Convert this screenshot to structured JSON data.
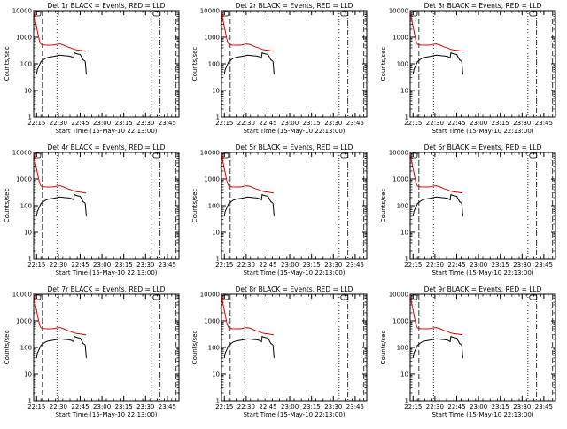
{
  "figure": {
    "title_template": "Det {det}r BLACK = Events, RED = LLD",
    "start_time_label": "Start Time (15-May-10 22:13:00)",
    "y_axis_label": "Counts/sec"
  },
  "chart_data": {
    "type": "line",
    "y_scale": "log",
    "ylim": [
      1,
      10000
    ],
    "y_tick_values": [
      1,
      10,
      100,
      1000,
      10000
    ],
    "y_tick_labels": [
      "1",
      "10",
      "100",
      "1000",
      "10000"
    ],
    "xlim_minutes_from_22_13": [
      0,
      100
    ],
    "x_tick_minutes_from_22_13": [
      2,
      17,
      32,
      47,
      62,
      77,
      92
    ],
    "x_tick_labels": [
      "22:15",
      "22:30",
      "22:45",
      "23:00",
      "23:15",
      "23:30",
      "23:45"
    ],
    "vertical_markers": [
      {
        "minute": 6,
        "style": "long-dash"
      },
      {
        "minute": 16,
        "style": "dotted"
      },
      {
        "minute": 81,
        "style": "dotted"
      },
      {
        "minute": 87,
        "style": "dash-dot"
      },
      {
        "minute": 98,
        "style": "long-dash"
      }
    ],
    "panels": [
      {
        "detector": "1",
        "series": [
          {
            "name": "Events",
            "color": "#000000",
            "x": [
              2,
              2.5,
              5,
              8,
              10,
              14,
              18,
              20,
              22,
              24,
              26,
              27.5,
              28,
              30,
              32,
              32.5,
              34,
              35,
              35.5,
              36,
              36.2
            ],
            "y": [
              40,
              60,
              120,
              160,
              175,
              190,
              210,
              205,
              200,
              195,
              185,
              165,
              260,
              235,
              225,
              200,
              140,
              130,
              120,
              60,
              40
            ]
          },
          {
            "name": "LLD",
            "color": "#dd0000",
            "x": [
              0,
              0.5,
              1,
              2,
              3,
              4,
              5,
              6,
              7,
              8,
              10,
              12,
              14,
              16,
              18,
              20,
              22,
              24,
              26,
              28,
              30,
              32,
              34,
              36
            ],
            "y": [
              9000,
              7000,
              4500,
              2500,
              1300,
              700,
              550,
              520,
              510,
              505,
              500,
              500,
              510,
              540,
              560,
              520,
              460,
              420,
              390,
              350,
              330,
              320,
              310,
              300
            ]
          }
        ]
      },
      {
        "detector": "2",
        "series": [
          {
            "name": "Events",
            "color": "#000000",
            "x": [
              2,
              2.5,
              5,
              8,
              10,
              14,
              18,
              20,
              22,
              24,
              26,
              27.5,
              28,
              30,
              32,
              32.5,
              34,
              35,
              35.5,
              36,
              36.2
            ],
            "y": [
              40,
              60,
              120,
              160,
              175,
              190,
              210,
              205,
              200,
              195,
              185,
              165,
              260,
              235,
              225,
              200,
              140,
              130,
              120,
              60,
              40
            ]
          },
          {
            "name": "LLD",
            "color": "#dd0000",
            "x": [
              0,
              0.5,
              1,
              2,
              3,
              4,
              5,
              6,
              7,
              8,
              10,
              12,
              14,
              16,
              18,
              20,
              22,
              24,
              26,
              28,
              30,
              32,
              34,
              36
            ],
            "y": [
              9000,
              7000,
              4500,
              2500,
              1300,
              700,
              550,
              520,
              510,
              505,
              500,
              500,
              510,
              540,
              560,
              520,
              460,
              420,
              390,
              350,
              330,
              320,
              310,
              300
            ]
          }
        ]
      },
      {
        "detector": "3",
        "series": [
          {
            "name": "Events",
            "color": "#000000",
            "x": [
              2,
              2.5,
              5,
              8,
              10,
              14,
              18,
              20,
              22,
              24,
              26,
              27.5,
              28,
              30,
              32,
              32.5,
              34,
              35,
              35.5,
              36,
              36.2
            ],
            "y": [
              40,
              60,
              120,
              160,
              175,
              190,
              210,
              205,
              200,
              195,
              185,
              165,
              260,
              235,
              225,
              200,
              140,
              130,
              120,
              60,
              40
            ]
          },
          {
            "name": "LLD",
            "color": "#dd0000",
            "x": [
              0,
              0.5,
              1,
              2,
              3,
              4,
              5,
              6,
              7,
              8,
              10,
              12,
              14,
              16,
              18,
              20,
              22,
              24,
              26,
              28,
              30,
              32,
              34,
              36
            ],
            "y": [
              9000,
              7000,
              4500,
              2500,
              1300,
              700,
              550,
              520,
              510,
              505,
              500,
              500,
              510,
              540,
              560,
              520,
              460,
              420,
              390,
              350,
              330,
              320,
              310,
              300
            ]
          }
        ]
      },
      {
        "detector": "4",
        "series": [
          {
            "name": "Events",
            "color": "#000000",
            "x": [
              2,
              2.5,
              5,
              8,
              10,
              14,
              18,
              20,
              22,
              24,
              26,
              27.5,
              28,
              30,
              32,
              32.5,
              34,
              35,
              35.5,
              36,
              36.2
            ],
            "y": [
              40,
              60,
              120,
              160,
              175,
              190,
              210,
              205,
              200,
              195,
              185,
              165,
              260,
              235,
              225,
              200,
              140,
              130,
              120,
              60,
              40
            ]
          },
          {
            "name": "LLD",
            "color": "#dd0000",
            "x": [
              0,
              0.5,
              1,
              2,
              3,
              4,
              5,
              6,
              7,
              8,
              10,
              12,
              14,
              16,
              18,
              20,
              22,
              24,
              26,
              28,
              30,
              32,
              34,
              36
            ],
            "y": [
              9000,
              7000,
              4500,
              2500,
              1300,
              700,
              550,
              520,
              510,
              505,
              500,
              500,
              510,
              540,
              560,
              520,
              460,
              420,
              390,
              350,
              330,
              320,
              310,
              300
            ]
          }
        ]
      },
      {
        "detector": "5",
        "series": [
          {
            "name": "Events",
            "color": "#000000",
            "x": [
              2,
              2.5,
              5,
              8,
              10,
              14,
              18,
              20,
              22,
              24,
              26,
              27.5,
              28,
              30,
              32,
              32.5,
              34,
              35,
              35.5,
              36,
              36.2
            ],
            "y": [
              40,
              60,
              120,
              160,
              175,
              190,
              210,
              205,
              200,
              195,
              185,
              165,
              260,
              235,
              225,
              200,
              140,
              130,
              120,
              60,
              40
            ]
          },
          {
            "name": "LLD",
            "color": "#dd0000",
            "x": [
              0,
              0.5,
              1,
              2,
              3,
              4,
              5,
              6,
              7,
              8,
              10,
              12,
              14,
              16,
              18,
              20,
              22,
              24,
              26,
              28,
              30,
              32,
              34,
              36
            ],
            "y": [
              9000,
              7000,
              4500,
              2500,
              1300,
              700,
              550,
              520,
              510,
              505,
              500,
              500,
              510,
              540,
              560,
              520,
              460,
              420,
              390,
              350,
              330,
              320,
              310,
              300
            ]
          }
        ]
      },
      {
        "detector": "6",
        "series": [
          {
            "name": "Events",
            "color": "#000000",
            "x": [
              2,
              2.5,
              5,
              8,
              10,
              14,
              18,
              20,
              22,
              24,
              26,
              27.5,
              28,
              30,
              32,
              32.5,
              34,
              35,
              35.5,
              36,
              36.2
            ],
            "y": [
              40,
              60,
              120,
              160,
              175,
              190,
              210,
              205,
              200,
              195,
              185,
              165,
              260,
              235,
              225,
              200,
              140,
              130,
              120,
              60,
              40
            ]
          },
          {
            "name": "LLD",
            "color": "#dd0000",
            "x": [
              0,
              0.5,
              1,
              2,
              3,
              4,
              5,
              6,
              7,
              8,
              10,
              12,
              14,
              16,
              18,
              20,
              22,
              24,
              26,
              28,
              30,
              32,
              34,
              36
            ],
            "y": [
              9000,
              7000,
              4500,
              2500,
              1300,
              700,
              550,
              520,
              510,
              505,
              500,
              500,
              510,
              540,
              560,
              520,
              460,
              420,
              390,
              350,
              330,
              320,
              310,
              300
            ]
          }
        ]
      },
      {
        "detector": "7",
        "series": [
          {
            "name": "Events",
            "color": "#000000",
            "x": [
              2,
              2.5,
              5,
              8,
              10,
              14,
              18,
              20,
              22,
              24,
              26,
              27.5,
              28,
              30,
              32,
              32.5,
              34,
              35,
              35.5,
              36,
              36.2
            ],
            "y": [
              40,
              60,
              120,
              160,
              175,
              190,
              210,
              205,
              200,
              195,
              185,
              165,
              260,
              235,
              225,
              200,
              140,
              130,
              120,
              60,
              40
            ]
          },
          {
            "name": "LLD",
            "color": "#dd0000",
            "x": [
              0,
              0.5,
              1,
              2,
              3,
              4,
              5,
              6,
              7,
              8,
              10,
              12,
              14,
              16,
              18,
              20,
              22,
              24,
              26,
              28,
              30,
              32,
              34,
              36
            ],
            "y": [
              9000,
              7000,
              4500,
              2500,
              1300,
              700,
              550,
              520,
              510,
              505,
              500,
              500,
              510,
              540,
              560,
              520,
              460,
              420,
              390,
              350,
              330,
              320,
              310,
              300
            ]
          }
        ]
      },
      {
        "detector": "8",
        "series": [
          {
            "name": "Events",
            "color": "#000000",
            "x": [
              2,
              2.5,
              5,
              8,
              10,
              14,
              18,
              20,
              22,
              24,
              26,
              27.5,
              28,
              30,
              32,
              32.5,
              34,
              35,
              35.5,
              36,
              36.2
            ],
            "y": [
              40,
              60,
              120,
              160,
              175,
              190,
              210,
              205,
              200,
              195,
              185,
              165,
              260,
              235,
              225,
              200,
              140,
              130,
              120,
              60,
              40
            ]
          },
          {
            "name": "LLD",
            "color": "#dd0000",
            "x": [
              0,
              0.5,
              1,
              2,
              3,
              4,
              5,
              6,
              7,
              8,
              10,
              12,
              14,
              16,
              18,
              20,
              22,
              24,
              26,
              28,
              30,
              32,
              34,
              36
            ],
            "y": [
              9000,
              7000,
              4500,
              2500,
              1300,
              700,
              550,
              520,
              510,
              505,
              500,
              500,
              510,
              540,
              560,
              520,
              460,
              420,
              390,
              350,
              330,
              320,
              310,
              300
            ]
          }
        ]
      },
      {
        "detector": "9",
        "series": [
          {
            "name": "Events",
            "color": "#000000",
            "x": [
              2,
              2.5,
              5,
              8,
              10,
              14,
              18,
              20,
              22,
              24,
              26,
              27.5,
              28,
              30,
              32,
              32.5,
              34,
              35,
              35.5,
              36,
              36.2
            ],
            "y": [
              40,
              60,
              120,
              160,
              175,
              190,
              210,
              205,
              200,
              195,
              185,
              165,
              260,
              235,
              225,
              200,
              140,
              130,
              120,
              60,
              40
            ]
          },
          {
            "name": "LLD",
            "color": "#dd0000",
            "x": [
              0,
              0.5,
              1,
              2,
              3,
              4,
              5,
              6,
              7,
              8,
              10,
              12,
              14,
              16,
              18,
              20,
              22,
              24,
              26,
              28,
              30,
              32,
              34,
              36
            ],
            "y": [
              9000,
              7000,
              4500,
              2500,
              1300,
              700,
              550,
              520,
              510,
              505,
              500,
              500,
              510,
              540,
              560,
              520,
              460,
              420,
              390,
              350,
              330,
              320,
              310,
              300
            ]
          }
        ]
      }
    ]
  }
}
